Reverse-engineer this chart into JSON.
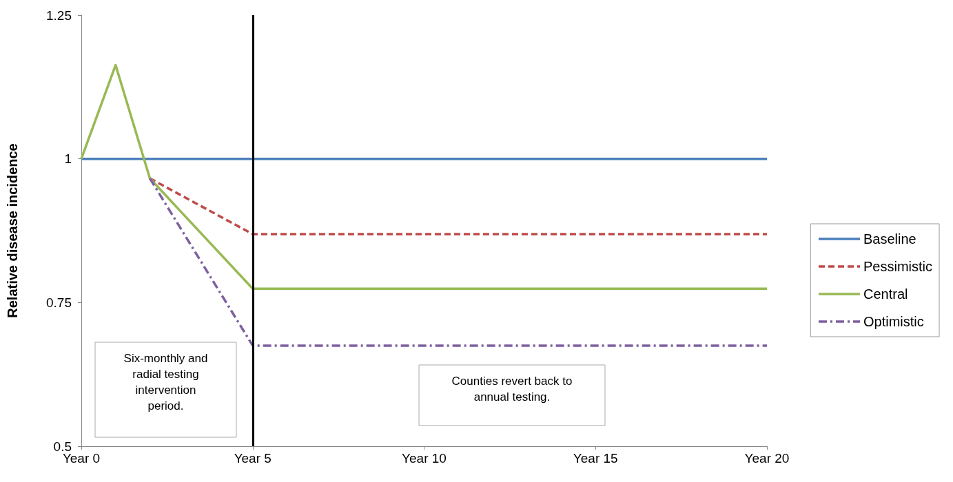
{
  "chart_data": {
    "type": "line",
    "ylabel": "Relative disease incidence",
    "categories": [
      "Year 0",
      null,
      null,
      null,
      null,
      "Year 5",
      null,
      null,
      null,
      null,
      "Year 10",
      null,
      null,
      null,
      null,
      "Year 15",
      null,
      null,
      null,
      null,
      "Year 20"
    ],
    "ylim": [
      0.5,
      1.25
    ],
    "yticks": [
      0.5,
      0.75,
      1,
      1.25
    ],
    "grid": false,
    "legend": "right",
    "marker": "none",
    "series": [
      {
        "name": "Baseline",
        "color": "#4a7ebb",
        "line_style": "solid",
        "values": [
          1,
          null,
          null,
          null,
          null,
          null,
          null,
          null,
          null,
          null,
          null,
          null,
          null,
          null,
          null,
          null,
          null,
          null,
          null,
          null,
          1
        ]
      },
      {
        "name": "Pessimistic",
        "color": "#be4b48",
        "line_style": "dashed",
        "values": [
          null,
          null,
          0.966,
          null,
          null,
          0.869,
          null,
          null,
          null,
          null,
          null,
          null,
          null,
          null,
          null,
          null,
          null,
          null,
          null,
          null,
          0.869
        ]
      },
      {
        "name": "Central",
        "color": "#98b954",
        "line_style": "solid",
        "values": [
          1,
          1.163,
          0.966,
          null,
          null,
          0.774,
          null,
          null,
          null,
          null,
          null,
          null,
          null,
          null,
          null,
          null,
          null,
          null,
          null,
          null,
          0.774
        ]
      },
      {
        "name": "Optimistic",
        "color": "#7d60a0",
        "line_style": "dashdot",
        "values": [
          null,
          null,
          0.966,
          null,
          null,
          0.675,
          null,
          null,
          null,
          null,
          null,
          null,
          null,
          null,
          null,
          null,
          null,
          null,
          null,
          null,
          0.675
        ]
      }
    ],
    "ref_lines": [
      {
        "axis": "x",
        "value": "Year 5",
        "color": "#000000"
      }
    ],
    "annotations": [
      "Six-monthly and\nradial testing\nintervention\nperiod.",
      "Counties revert back to\nannual testing."
    ]
  }
}
